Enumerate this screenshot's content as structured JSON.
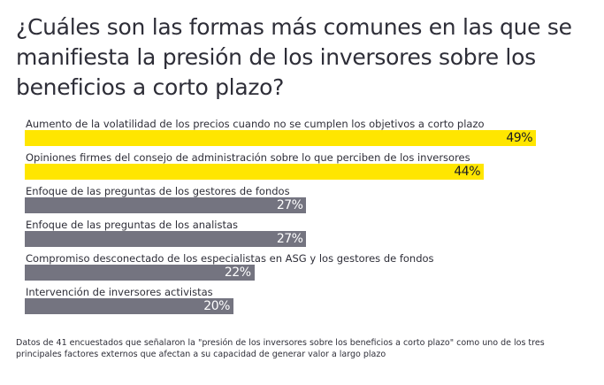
{
  "chart_data": {
    "type": "bar",
    "orientation": "horizontal",
    "title": "¿Cuáles son las formas más comunes en las que se manifiesta la presión de los inversores sobre los beneficios a corto plazo?",
    "categories": [
      "Aumento de la volatilidad de los precios cuando no se cumplen los objetivos a corto plazo",
      "Opiniones firmes del consejo de administración sobre lo que perciben de los inversores",
      "Enfoque de las preguntas de los gestores de fondos",
      "Enfoque de las preguntas de los analistas",
      "Compromiso desconectado de los especialistas en ASG y los gestores de fondos",
      "Intervención de inversores activistas"
    ],
    "values": [
      49,
      44,
      27,
      27,
      22,
      20
    ],
    "value_labels": [
      "49%",
      "44%",
      "27%",
      "27%",
      "22%",
      "20%"
    ],
    "colors": [
      "#ffe600",
      "#ffe600",
      "#747480",
      "#747480",
      "#747480",
      "#747480"
    ],
    "label_colors": [
      "#1a1a24",
      "#1a1a24",
      "#ffffff",
      "#ffffff",
      "#ffffff",
      "#ffffff"
    ],
    "xlim": [
      0,
      50
    ],
    "unit": "%",
    "grid": false,
    "footnote": "Datos de 41 encuestados que señalaron la \"presión de los inversores sobre los beneficios a corto plazo\" como uno de los tres principales factores externos que afectan a su capacidad de generar valor a largo plazo"
  }
}
